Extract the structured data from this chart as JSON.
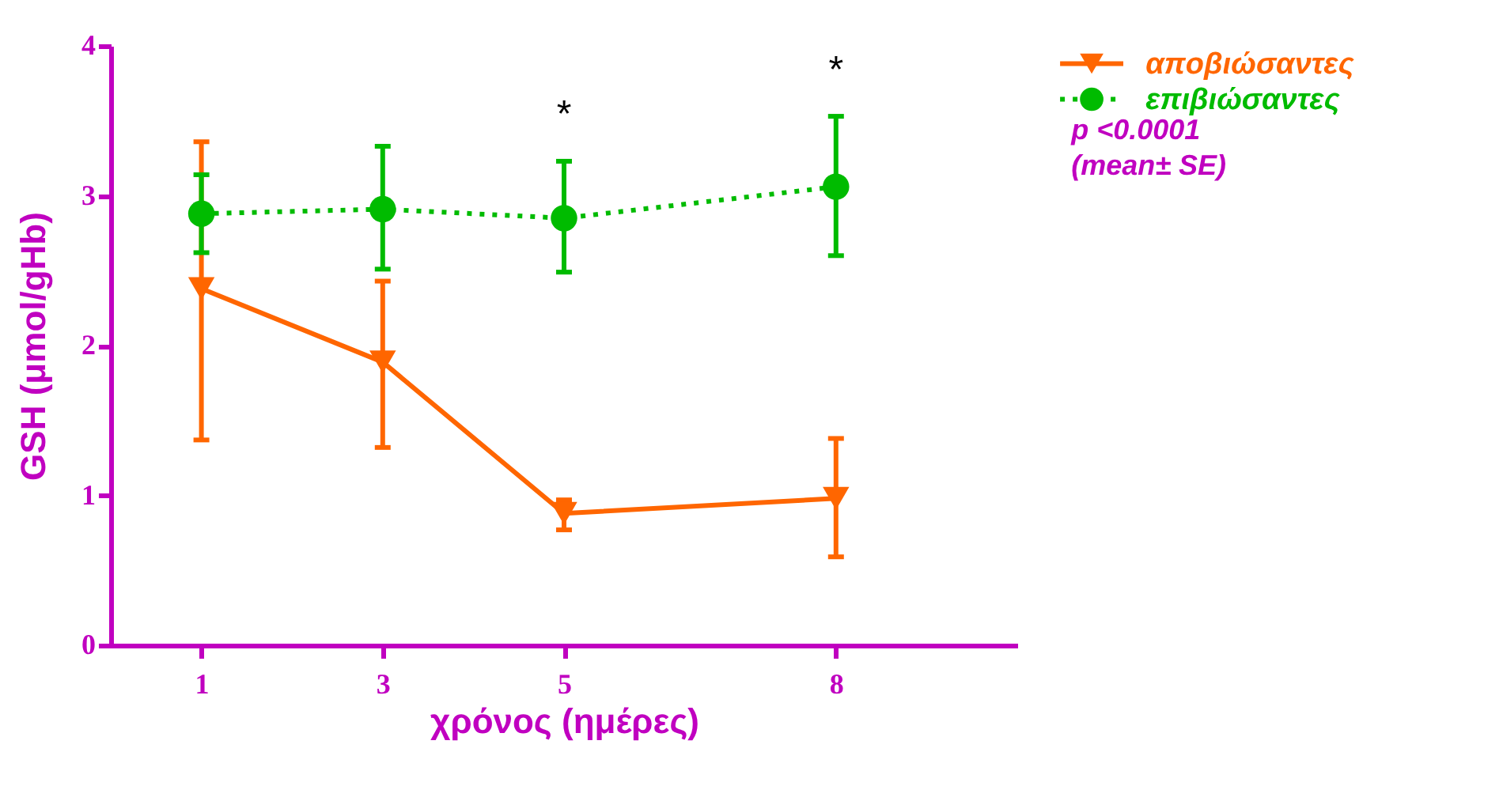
{
  "chart_data": {
    "type": "line",
    "xlabel": "χρόνος (ημέρες)",
    "ylabel": "GSH (μmol/gHb)",
    "x": [
      1,
      3,
      5,
      8
    ],
    "xlim": [
      0,
      10
    ],
    "xticks": [
      1,
      3,
      5,
      8
    ],
    "ylim": [
      0,
      4
    ],
    "yticks": [
      0,
      1,
      2,
      3,
      4
    ],
    "grid": false,
    "legend": "right",
    "series": [
      {
        "name": "αποβιώσαντες",
        "color": "#ff6600",
        "marker": "triangle",
        "line_style": "solid",
        "values": [
          2.38,
          1.89,
          0.88,
          0.98
        ],
        "errors": [
          [
            1.37,
            3.36
          ],
          [
            1.32,
            2.43
          ],
          [
            0.77,
            0.97
          ],
          [
            0.59,
            1.38
          ]
        ]
      },
      {
        "name": "επιβιώσαντες",
        "color": "#00bb00",
        "marker": "circle",
        "line_style": "dotted",
        "values": [
          2.88,
          2.91,
          2.85,
          3.06
        ],
        "errors": [
          [
            2.62,
            3.14
          ],
          [
            2.51,
            3.33
          ],
          [
            2.49,
            3.23
          ],
          [
            2.6,
            3.53
          ]
        ]
      }
    ],
    "annotations": [
      "*",
      "*",
      "p <0.0001",
      "(mean± SE)"
    ]
  }
}
